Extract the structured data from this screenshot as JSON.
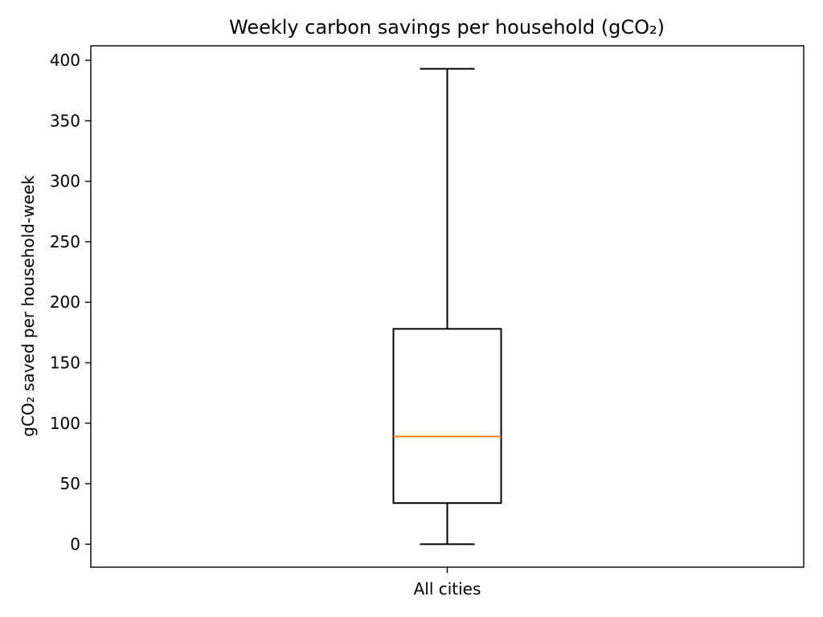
{
  "chart_data": {
    "type": "boxplot",
    "title": "Weekly carbon savings per household (gCO₂)",
    "xlabel": "",
    "ylabel": "gCO₂ saved per household-week",
    "ylim": [
      -19,
      412
    ],
    "yticks": [
      0,
      50,
      100,
      150,
      200,
      250,
      300,
      350,
      400
    ],
    "categories": [
      "All cities"
    ],
    "boxes": [
      {
        "category": "All cities",
        "whisker_low": 0,
        "q1": 34,
        "median": 89,
        "q3": 178,
        "whisker_high": 393
      }
    ],
    "grid": false,
    "legend": "none",
    "colors": {
      "box": "#000000",
      "median": "#ff7f0e",
      "frame": "#000000"
    }
  }
}
